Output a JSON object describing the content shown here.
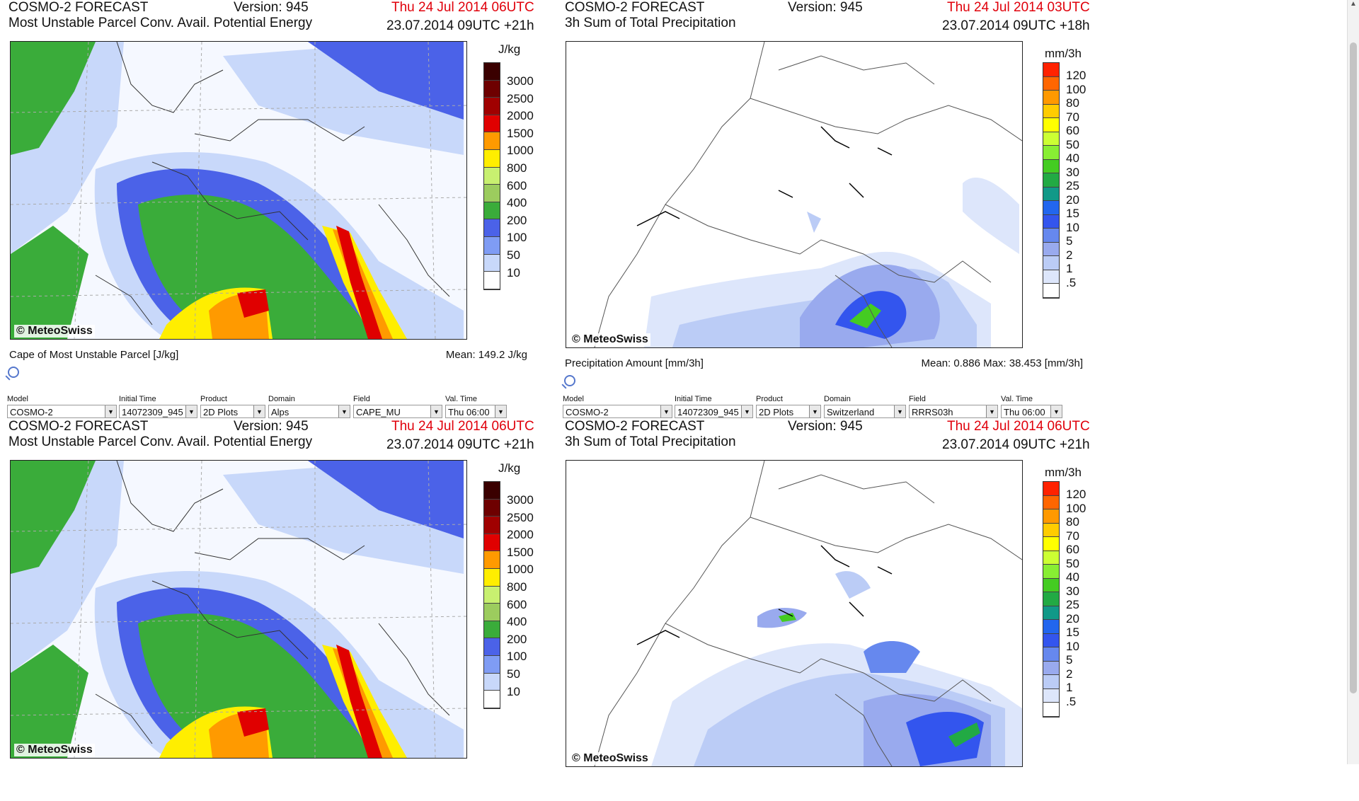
{
  "panels": [
    {
      "title": "COSMO-2 FORECAST",
      "subtitle": "Most Unstable Parcel Conv. Avail. Potential Energy",
      "version": "Version: 945",
      "valid_time": "Thu 24 Jul 2014 06UTC",
      "run": "23.07.2014 09UTC +21h",
      "unit": "J/kg",
      "ticks": [
        "3000",
        "2500",
        "2000",
        "1500",
        "1000",
        "800",
        "600",
        "400",
        "200",
        "100",
        "50",
        "10"
      ],
      "colors": [
        "#3a0000",
        "#6e0000",
        "#a00000",
        "#e00000",
        "#ff9a00",
        "#ffee00",
        "#c8f070",
        "#9ccc5e",
        "#3aac3a",
        "#4b62e8",
        "#7f9cf4",
        "#c8d8fa",
        "#ffffff"
      ],
      "copyright": "© MeteoSwiss",
      "caption": "Cape of Most Unstable Parcel [J/kg]",
      "mean": "Mean:  149.2 J/kg",
      "map_kind": "cape"
    },
    {
      "title": "COSMO-2 FORECAST",
      "subtitle": "3h Sum of Total Precipitation",
      "version": "Version: 945",
      "valid_time": "Thu 24 Jul 2014 03UTC",
      "run": "23.07.2014 09UTC +18h",
      "unit": "mm/3h",
      "ticks": [
        "120",
        "100",
        "80",
        "70",
        "60",
        "50",
        "40",
        "30",
        "25",
        "20",
        "15",
        "10",
        "5",
        "2",
        "1",
        ".5"
      ],
      "colors": [
        "#ff2200",
        "#ff6600",
        "#ff9900",
        "#ffcc00",
        "#ffff00",
        "#ccff33",
        "#88ee33",
        "#44cc22",
        "#22aa44",
        "#119988",
        "#2266ee",
        "#3355ee",
        "#6688ee",
        "#99aaee",
        "#bbccf6",
        "#dde6fb",
        "#ffffff"
      ],
      "copyright": "© MeteoSwiss",
      "caption": "Precipitation Amount [mm/3h]",
      "mean": "Mean:   0.886 Max:  38.453 [mm/3h]",
      "map_kind": "precip1"
    },
    {
      "title": "COSMO-2 FORECAST",
      "subtitle": "Most Unstable Parcel Conv. Avail. Potential Energy",
      "version": "Version: 945",
      "valid_time": "Thu 24 Jul 2014 06UTC",
      "run": "23.07.2014 09UTC +21h",
      "unit": "J/kg",
      "ticks": [
        "3000",
        "2500",
        "2000",
        "1500",
        "1000",
        "800",
        "600",
        "400",
        "200",
        "100",
        "50",
        "10"
      ],
      "colors": [
        "#3a0000",
        "#6e0000",
        "#a00000",
        "#e00000",
        "#ff9a00",
        "#ffee00",
        "#c8f070",
        "#9ccc5e",
        "#3aac3a",
        "#4b62e8",
        "#7f9cf4",
        "#c8d8fa",
        "#ffffff"
      ],
      "copyright": "© MeteoSwiss",
      "map_kind": "cape"
    },
    {
      "title": "COSMO-2 FORECAST",
      "subtitle": "3h Sum of Total Precipitation",
      "version": "Version: 945",
      "valid_time": "Thu 24 Jul 2014 06UTC",
      "run": "23.07.2014 09UTC +21h",
      "unit": "mm/3h",
      "ticks": [
        "120",
        "100",
        "80",
        "70",
        "60",
        "50",
        "40",
        "30",
        "25",
        "20",
        "15",
        "10",
        "5",
        "2",
        "1",
        ".5"
      ],
      "colors": [
        "#ff2200",
        "#ff6600",
        "#ff9900",
        "#ffcc00",
        "#ffff00",
        "#ccff33",
        "#88ee33",
        "#44cc22",
        "#22aa44",
        "#119988",
        "#2266ee",
        "#3355ee",
        "#6688ee",
        "#99aaee",
        "#bbccf6",
        "#dde6fb",
        "#ffffff"
      ],
      "copyright": "© MeteoSwiss",
      "map_kind": "precip2"
    }
  ],
  "controls": [
    {
      "model_label": "Model",
      "model": "COSMO-2",
      "initial_label": "Initial Time",
      "initial": "14072309_945",
      "product_label": "Product",
      "product": "2D Plots",
      "domain_label": "Domain",
      "domain": "Alps",
      "field_label": "Field",
      "field": "CAPE_MU",
      "valtime_label": "Val. Time",
      "valtime": "Thu 06:00"
    },
    {
      "model_label": "Model",
      "model": "COSMO-2",
      "initial_label": "Initial Time",
      "initial": "14072309_945",
      "product_label": "Product",
      "product": "2D Plots",
      "domain_label": "Domain",
      "domain": "Switzerland",
      "field_label": "Field",
      "field": "RRRS03h",
      "valtime_label": "Val. Time",
      "valtime": "Thu 06:00"
    }
  ]
}
